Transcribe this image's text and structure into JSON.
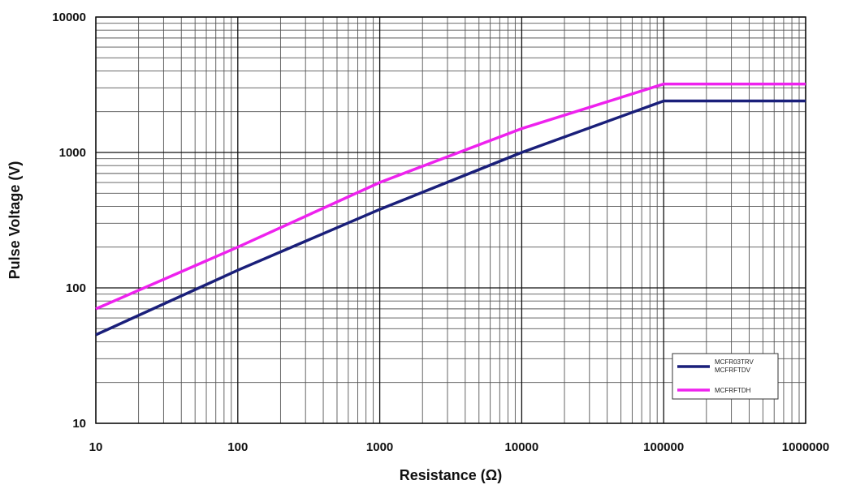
{
  "chart_data": {
    "type": "line",
    "xscale": "log",
    "yscale": "log",
    "xlim": [
      10,
      1000000
    ],
    "ylim": [
      10,
      10000
    ],
    "xlabel": "Resistance (Ω)",
    "ylabel": "Pulse Voltage (V)",
    "x_ticks": [
      "10",
      "100",
      "1000",
      "10000",
      "100000",
      "1000000"
    ],
    "y_ticks": [
      "10",
      "100",
      "1000",
      "10000"
    ],
    "grid": true,
    "legend_position": "bottom-right",
    "series": [
      {
        "name": "MCFR03TRV MCFRFTDV",
        "color": "#1a1f7a",
        "x": [
          10,
          100,
          1000,
          10000,
          100000,
          1000000
        ],
        "y": [
          45,
          135,
          380,
          1000,
          2400,
          2400
        ]
      },
      {
        "name": "MCFRFTDH",
        "color": "#ee22ee",
        "x": [
          10,
          100,
          1000,
          10000,
          100000,
          1000000
        ],
        "y": [
          70,
          200,
          600,
          1500,
          3200,
          3200
        ]
      }
    ]
  }
}
